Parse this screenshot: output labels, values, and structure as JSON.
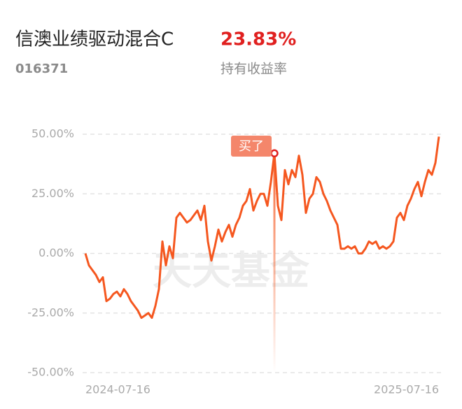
{
  "header": {
    "title": "信澳业绩驱动混合C",
    "code": "016371",
    "return": "23.83%",
    "return_label": "持有收益率"
  },
  "chart_data": {
    "type": "line",
    "watermark": "天天基金",
    "annotation": {
      "text": "买了",
      "index": 54
    },
    "categories": [
      "2024-07-16",
      null,
      null,
      null,
      null,
      null,
      null,
      null,
      null,
      null,
      null,
      null,
      null,
      null,
      null,
      null,
      null,
      null,
      null,
      null,
      null,
      null,
      null,
      null,
      null,
      null,
      null,
      null,
      null,
      null,
      null,
      null,
      null,
      null,
      null,
      null,
      null,
      null,
      null,
      null,
      null,
      null,
      null,
      null,
      null,
      null,
      null,
      null,
      null,
      null,
      null,
      null,
      null,
      null,
      null,
      null,
      null,
      null,
      null,
      null,
      null,
      null,
      null,
      null,
      null,
      null,
      null,
      null,
      null,
      null,
      null,
      null,
      null,
      null,
      null,
      null,
      null,
      null,
      null,
      null,
      null,
      null,
      null,
      null,
      null,
      null,
      null,
      null,
      null,
      null,
      null,
      null,
      null,
      null,
      null,
      null,
      null,
      null,
      null,
      null,
      null,
      "2025-07-16"
    ],
    "series": [
      {
        "color": "#f5571f",
        "values": [
          0,
          -5,
          -7,
          -9,
          -12,
          -10,
          -20,
          -19,
          -17,
          -16,
          -18,
          -15,
          -17,
          -20,
          -22,
          -24,
          -27,
          -26,
          -25,
          -27,
          -22,
          -15,
          5,
          -5,
          3,
          -2,
          15,
          17,
          15,
          13,
          14,
          16,
          18,
          14,
          20,
          5,
          -3,
          3,
          10,
          5,
          9,
          12,
          7,
          12,
          15,
          20,
          22,
          27,
          18,
          22,
          25,
          25,
          20,
          30,
          42,
          20,
          14,
          35,
          29,
          35,
          32,
          41,
          33,
          17,
          23,
          25,
          32,
          30,
          25,
          22,
          18,
          15,
          12,
          2,
          2,
          3,
          2,
          3,
          0,
          0,
          2,
          5,
          4,
          5,
          2,
          3,
          2,
          3,
          5,
          15,
          17,
          14,
          20,
          23,
          27,
          30,
          24,
          30,
          35,
          33,
          38,
          49
        ]
      }
    ],
    "ylim": [
      -50,
      50
    ],
    "yticks": [
      {
        "value": -50,
        "label": "-50.00%"
      },
      {
        "value": -25,
        "label": "-25.00%"
      },
      {
        "value": 0,
        "label": "0.00%"
      },
      {
        "value": 25,
        "label": "25.00%"
      },
      {
        "value": 50,
        "label": "50.00%"
      }
    ],
    "grid": true
  }
}
